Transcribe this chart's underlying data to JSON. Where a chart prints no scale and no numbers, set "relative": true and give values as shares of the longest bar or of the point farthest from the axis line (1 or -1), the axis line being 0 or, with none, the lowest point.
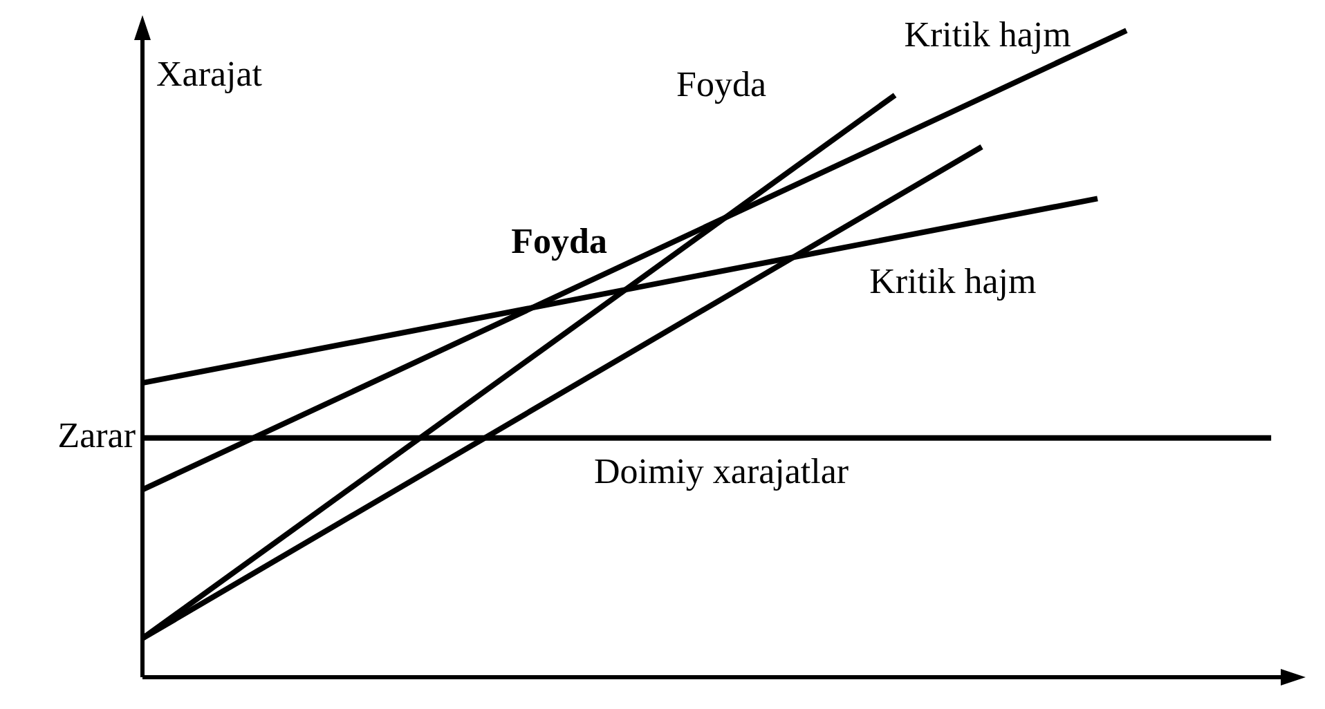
{
  "chart_data": {
    "type": "line",
    "relative": true,
    "ylabel": "Xarajat",
    "legend": false,
    "grid": false,
    "marker": "none",
    "line_style": "solid",
    "categories": [
      null,
      null,
      null,
      null,
      null,
      null,
      null,
      null,
      null,
      null,
      null,
      null,
      null,
      null,
      null,
      null,
      null,
      null,
      null,
      null,
      null,
      null,
      null,
      null,
      null,
      null,
      null,
      null,
      null,
      null,
      null,
      null,
      null,
      null,
      null,
      null,
      null,
      null,
      null,
      null,
      null
    ],
    "series": [
      {
        "color": "#000000",
        "values": [
          0.37,
          null,
          null,
          null,
          null,
          null,
          null,
          null,
          null,
          null,
          null,
          null,
          null,
          null,
          null,
          null,
          null,
          null,
          null,
          null,
          null,
          null,
          null,
          null,
          null,
          null,
          null,
          null,
          null,
          null,
          null,
          null,
          null,
          null,
          null,
          null,
          null,
          null,
          null,
          0.37,
          null
        ]
      },
      {
        "color": "#000000",
        "values": [
          0.455,
          null,
          null,
          null,
          null,
          null,
          null,
          null,
          null,
          null,
          null,
          null,
          null,
          null,
          null,
          null,
          null,
          null,
          null,
          null,
          null,
          null,
          null,
          null,
          null,
          null,
          null,
          null,
          null,
          null,
          null,
          null,
          null,
          0.74,
          null,
          null,
          null,
          null,
          null,
          null,
          null
        ]
      },
      {
        "color": "#000000",
        "values": [
          0.29,
          null,
          null,
          null,
          null,
          null,
          null,
          null,
          null,
          null,
          null,
          null,
          null,
          null,
          null,
          null,
          null,
          null,
          null,
          null,
          null,
          null,
          null,
          null,
          null,
          null,
          null,
          null,
          null,
          null,
          null,
          null,
          null,
          null,
          1,
          null,
          null,
          null,
          null,
          null,
          null
        ]
      },
      {
        "color": "#000000",
        "values": [
          0.06,
          null,
          null,
          null,
          null,
          null,
          null,
          null,
          null,
          null,
          null,
          null,
          null,
          null,
          null,
          null,
          null,
          null,
          null,
          null,
          null,
          null,
          null,
          null,
          null,
          null,
          0.9,
          null,
          null,
          null,
          null,
          null,
          null,
          null,
          null,
          null,
          null,
          null,
          null,
          null,
          null
        ]
      },
      {
        "color": "#000000",
        "values": [
          0.06,
          null,
          null,
          null,
          null,
          null,
          null,
          null,
          null,
          null,
          null,
          null,
          null,
          null,
          null,
          null,
          null,
          null,
          null,
          null,
          null,
          null,
          null,
          null,
          null,
          null,
          null,
          null,
          null,
          0.82,
          null,
          null,
          null,
          null,
          null,
          null,
          null,
          null,
          null,
          null,
          null
        ]
      }
    ],
    "annotations": [
      "Kritik hajm",
      "Foyda",
      "Foyda",
      "Kritik hajm",
      "Doimiy xarajatlar",
      "Zarar"
    ]
  }
}
